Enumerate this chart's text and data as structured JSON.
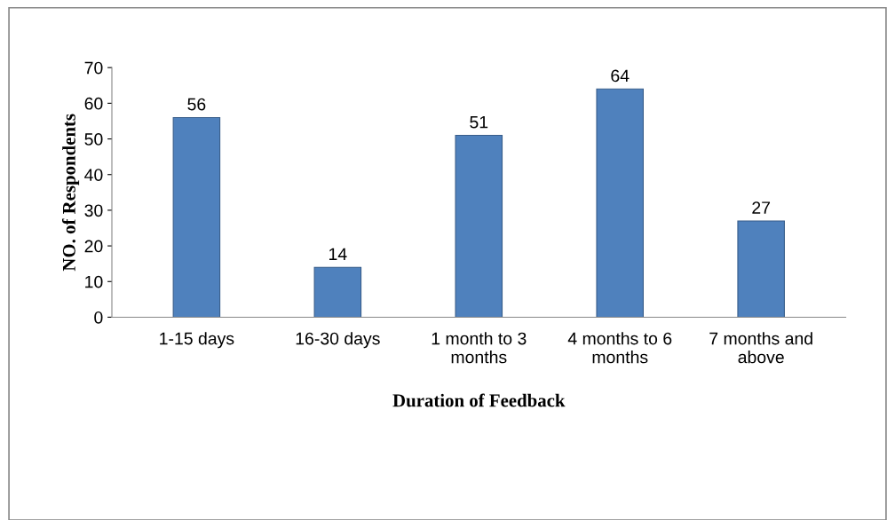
{
  "chart_data": {
    "type": "bar",
    "xlabel": "Duration of Feedback",
    "ylabel": "NO. of Respondents",
    "categories": [
      "1-15 days",
      "16-30 days",
      "1 month to 3 months",
      "4 months to 6 months",
      "7 months and above"
    ],
    "values": [
      56,
      14,
      51,
      64,
      27
    ],
    "color": "#4f81bd",
    "ylim": [
      0,
      70
    ],
    "yticks": [
      0,
      10,
      20,
      30,
      40,
      50,
      60,
      70
    ],
    "data_labels": true,
    "grid": false,
    "legend": false
  }
}
